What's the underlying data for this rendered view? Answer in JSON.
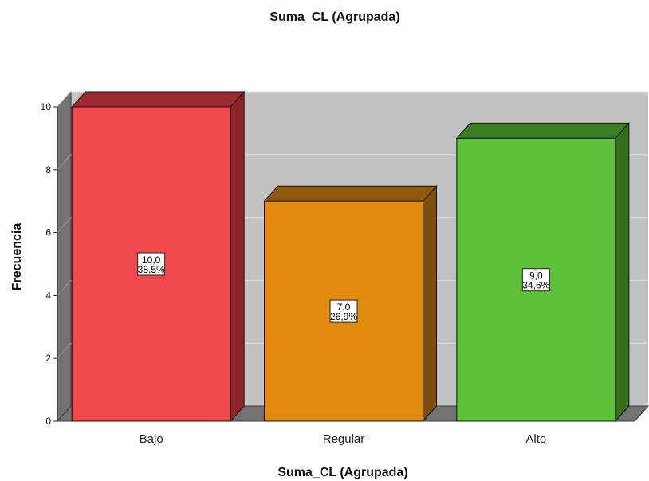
{
  "chart_data": {
    "type": "bar",
    "title": "Suma_CL (Agrupada)",
    "xlabel": "Suma_CL (Agrupada)",
    "ylabel": "Frecuencia",
    "categories": [
      "Bajo",
      "Regular",
      "Alto"
    ],
    "values": [
      10,
      7,
      9
    ],
    "value_labels": [
      "10,0",
      "7,0",
      "9,0"
    ],
    "percent_labels": [
      "38,5%",
      "26,9%",
      "34,6%"
    ],
    "yticks": [
      "0",
      "2",
      "4",
      "6",
      "8",
      "10"
    ],
    "ylim": [
      0,
      10
    ],
    "grid": true,
    "style": "3d",
    "colors": {
      "bars": [
        "#ef4b4f",
        "#e08a10",
        "#5dc23a"
      ],
      "tops": [
        "#9b2a2e",
        "#8f5a0a",
        "#3b7d22"
      ],
      "sides": [
        "#8c2428",
        "#7e4f08",
        "#346f1e"
      ],
      "back_wall": "#c2c2c2",
      "left_wall": "#737373",
      "floor": "#737373",
      "gridline": "#e0e0e0"
    }
  }
}
